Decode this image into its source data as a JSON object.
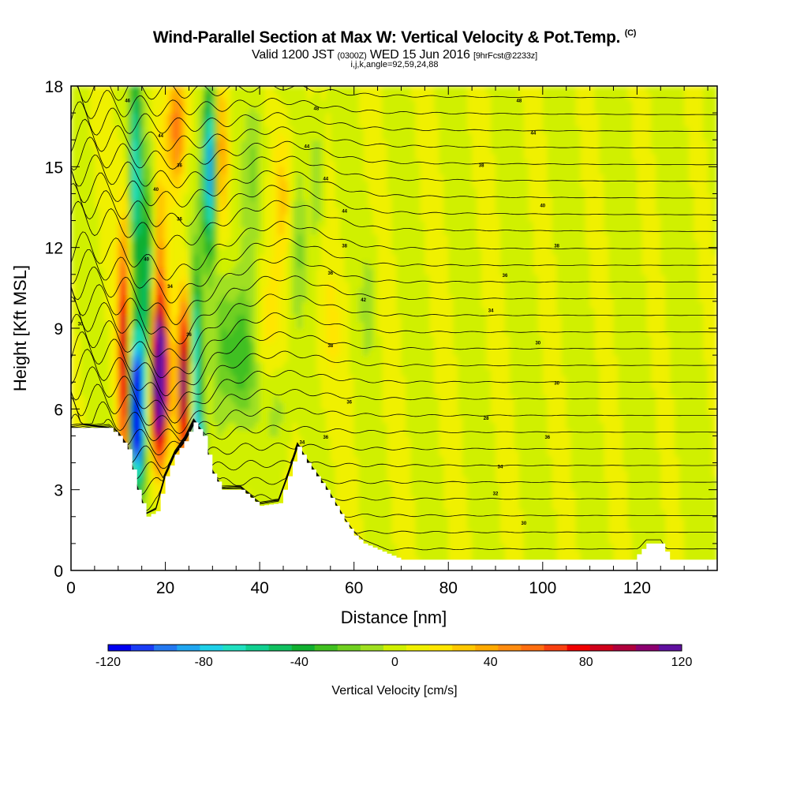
{
  "header": {
    "title": "Wind-Parallel Section at Max W: Vertical Velocity & Pot.Temp.",
    "title_mark": "(C)",
    "valid_line": "Valid 1200 JST",
    "valid_z": "(0300Z)",
    "valid_date": "WED 15 Jun 2016",
    "fcst": "[9hrFcst@2233z]",
    "ijk": "i,j,k,angle=92,59,24,88"
  },
  "chart_data": {
    "type": "heatmap",
    "xlabel": "Distance [nm]",
    "ylabel": "Height [Kft MSL]",
    "xlim": [
      0,
      137
    ],
    "ylim": [
      0,
      18
    ],
    "x_ticks": [
      "0",
      "20",
      "40",
      "60",
      "80",
      "100",
      "120"
    ],
    "y_ticks": [
      "0",
      "3",
      "6",
      "9",
      "12",
      "15",
      "18"
    ],
    "colorbar": {
      "label": "Vertical Velocity [cm/s]",
      "ticks": [
        "-120",
        "-80",
        "-40",
        "0",
        "40",
        "80",
        "120"
      ],
      "range": [
        -120,
        120
      ],
      "colors": [
        "#0000f0",
        "#1a3cf5",
        "#2478f0",
        "#20a6f0",
        "#1ed0e8",
        "#20e0c0",
        "#10d090",
        "#10c060",
        "#10b030",
        "#40c020",
        "#70d020",
        "#a0e020",
        "#d0f000",
        "#f0f000",
        "#ffe600",
        "#ffc800",
        "#ffaa00",
        "#ff8c10",
        "#ff6e10",
        "#f84010",
        "#f00000",
        "#d0001a",
        "#b0003c",
        "#8c0070",
        "#6010a0"
      ]
    },
    "terrain_kft": [
      [
        0,
        5.3
      ],
      [
        8,
        5.3
      ],
      [
        10,
        5.0
      ],
      [
        12,
        4.5
      ],
      [
        14,
        3.0
      ],
      [
        16,
        2.0
      ],
      [
        18,
        2.2
      ],
      [
        20,
        3.5
      ],
      [
        22,
        4.3
      ],
      [
        24,
        4.8
      ],
      [
        26,
        5.5
      ],
      [
        28,
        5.0
      ],
      [
        30,
        3.6
      ],
      [
        32,
        3.0
      ],
      [
        36,
        3.0
      ],
      [
        40,
        2.4
      ],
      [
        44,
        2.5
      ],
      [
        46,
        3.5
      ],
      [
        48,
        4.6
      ],
      [
        50,
        4.0
      ],
      [
        52,
        3.5
      ],
      [
        54,
        3.0
      ],
      [
        56,
        2.4
      ],
      [
        58,
        1.8
      ],
      [
        60,
        1.3
      ],
      [
        62,
        1.0
      ],
      [
        66,
        0.7
      ],
      [
        70,
        0.4
      ],
      [
        80,
        0.4
      ],
      [
        100,
        0.4
      ],
      [
        119,
        0.4
      ],
      [
        120,
        0.6
      ],
      [
        122,
        1.0
      ],
      [
        125,
        1.0
      ],
      [
        127,
        0.4
      ],
      [
        137,
        0.4
      ]
    ],
    "theta_labels": [
      {
        "x": 12,
        "y": 17.4,
        "t": "46"
      },
      {
        "x": 19,
        "y": 16.1,
        "t": "44"
      },
      {
        "x": 23,
        "y": 15.0,
        "t": "36"
      },
      {
        "x": 18,
        "y": 14.1,
        "t": "40"
      },
      {
        "x": 23,
        "y": 13.0,
        "t": "36"
      },
      {
        "x": 16,
        "y": 11.5,
        "t": "40"
      },
      {
        "x": 21,
        "y": 10.5,
        "t": "34"
      },
      {
        "x": 25,
        "y": 8.7,
        "t": "36"
      },
      {
        "x": 2,
        "y": 9.1,
        "t": "30"
      },
      {
        "x": 52,
        "y": 17.1,
        "t": "48"
      },
      {
        "x": 50,
        "y": 15.7,
        "t": "44"
      },
      {
        "x": 54,
        "y": 14.5,
        "t": "44"
      },
      {
        "x": 58,
        "y": 13.3,
        "t": "44"
      },
      {
        "x": 58,
        "y": 12.0,
        "t": "38"
      },
      {
        "x": 55,
        "y": 11.0,
        "t": "36"
      },
      {
        "x": 62,
        "y": 10.0,
        "t": "42"
      },
      {
        "x": 55,
        "y": 8.3,
        "t": "38"
      },
      {
        "x": 59,
        "y": 6.2,
        "t": "36"
      },
      {
        "x": 54,
        "y": 4.9,
        "t": "36"
      },
      {
        "x": 49,
        "y": 4.7,
        "t": "34"
      },
      {
        "x": 95,
        "y": 17.4,
        "t": "48"
      },
      {
        "x": 98,
        "y": 16.2,
        "t": "44"
      },
      {
        "x": 87,
        "y": 15.0,
        "t": "38"
      },
      {
        "x": 100,
        "y": 13.5,
        "t": "40"
      },
      {
        "x": 103,
        "y": 12.0,
        "t": "38"
      },
      {
        "x": 92,
        "y": 10.9,
        "t": "36"
      },
      {
        "x": 89,
        "y": 9.6,
        "t": "34"
      },
      {
        "x": 99,
        "y": 8.4,
        "t": "30"
      },
      {
        "x": 103,
        "y": 6.9,
        "t": "30"
      },
      {
        "x": 88,
        "y": 5.6,
        "t": "28"
      },
      {
        "x": 101,
        "y": 4.9,
        "t": "36"
      },
      {
        "x": 91,
        "y": 3.8,
        "t": "34"
      },
      {
        "x": 90,
        "y": 2.8,
        "t": "32"
      },
      {
        "x": 96,
        "y": 1.7,
        "t": "30"
      }
    ]
  }
}
